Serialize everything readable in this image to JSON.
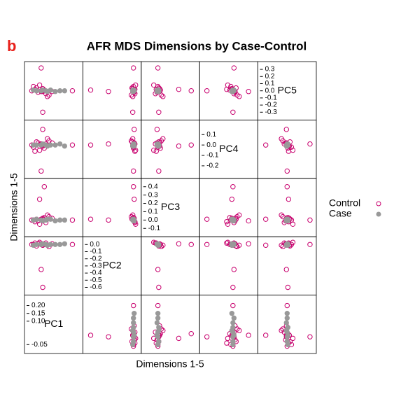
{
  "chart_data": {
    "type": "splom",
    "panel_label": "b",
    "title": "AFR MDS Dimensions by Case-Control",
    "xlabel": "Dimensions 1-5",
    "ylabel": "Dimensions 1-5",
    "variables": [
      {
        "name": "PC1",
        "lim": [
          -0.08,
          0.24
        ],
        "ticks": [
          -0.05,
          {
            "value": 0.1,
            "label": "0.10"
          },
          {
            "value": 0.15,
            "label": "0.15"
          },
          {
            "value": 0.2,
            "label": "0.20"
          }
        ]
      },
      {
        "name": "PC2",
        "lim": [
          -0.65,
          0.05
        ],
        "ticks": [
          {
            "value": 0,
            "label": "0.0"
          },
          -0.1,
          -0.2,
          -0.3,
          -0.4,
          -0.5,
          -0.6
        ]
      },
      {
        "name": "PC3",
        "lim": [
          -0.15,
          0.45
        ],
        "ticks": [
          -0.1,
          {
            "value": 0,
            "label": "0.0"
          },
          0.1,
          0.2,
          0.3,
          0.4
        ]
      },
      {
        "name": "PC4",
        "lim": [
          -0.28,
          0.2
        ],
        "ticks": [
          -0.2,
          -0.1,
          {
            "value": 0,
            "label": "0.0"
          },
          0.1
        ]
      },
      {
        "name": "PC5",
        "lim": [
          -0.35,
          0.35
        ],
        "ticks": [
          -0.3,
          -0.2,
          -0.1,
          {
            "value": 0,
            "label": "0.0"
          },
          0.1,
          0.2,
          0.3
        ]
      }
    ],
    "series": [
      {
        "name": "Control",
        "color": "#c8006e",
        "filled": false,
        "values": [
          [
            0,
            0,
            0,
            0,
            0
          ],
          [
            0.01,
            -0.01,
            0.02,
            -0.01,
            0.03
          ],
          [
            -0.02,
            0.01,
            -0.01,
            0.02,
            -0.02
          ],
          [
            0.02,
            0,
            0.03,
            -0.03,
            0.01
          ],
          [
            -0.03,
            -0.02,
            0.01,
            0.03,
            0.04
          ],
          [
            0.03,
            0.02,
            -0.03,
            0.01,
            -0.04
          ],
          [
            -0.05,
            0,
            0,
            -0.02,
            0.06
          ],
          [
            0.05,
            -0.03,
            0.04,
            0.04,
            -0.06
          ],
          [
            -0.01,
            0.03,
            -0.05,
            -0.05,
            0.08
          ],
          [
            0.04,
            -0.01,
            0.06,
            0.06,
            -0.08
          ],
          [
            -0.04,
            0.02,
            -0.02,
            -0.06,
            0.02
          ],
          [
            0.07,
            0.01,
            0.02,
            0.02,
            -0.01
          ],
          [
            0.01,
            -0.6,
            0.01,
            0,
            0.01
          ],
          [
            0,
            -0.35,
            0,
            0.01,
            -0.01
          ],
          [
            0.02,
            0,
            0.4,
            0,
            0
          ],
          [
            -0.01,
            0.01,
            0.25,
            -0.01,
            0.02
          ],
          [
            0,
            0,
            0.01,
            -0.25,
            0
          ],
          [
            0.01,
            0.01,
            -0.01,
            0.15,
            -0.01
          ],
          [
            0,
            0,
            0,
            0.01,
            0.32
          ],
          [
            0.01,
            -0.01,
            0.01,
            0,
            -0.3
          ],
          [
            0.2,
            0,
            0,
            0,
            0
          ],
          [
            -0.06,
            0,
            0,
            0,
            0
          ]
        ]
      },
      {
        "name": "Case",
        "color": "#999999",
        "filled": true,
        "values": [
          [
            0,
            0,
            0,
            0,
            0
          ],
          [
            0.03,
            0,
            0,
            0,
            0
          ],
          [
            0.06,
            0,
            0.01,
            0,
            0.01
          ],
          [
            0.09,
            0,
            -0.01,
            0,
            -0.01
          ],
          [
            0.12,
            0,
            0,
            0.01,
            0
          ],
          [
            0.15,
            0.01,
            0,
            -0.01,
            0
          ],
          [
            -0.03,
            0,
            0.01,
            0,
            0
          ],
          [
            -0.05,
            -0.01,
            0,
            0,
            0.01
          ],
          [
            0.01,
            0.01,
            -0.01,
            0.01,
            0.01
          ],
          [
            0.04,
            -0.01,
            0.01,
            -0.01,
            -0.01
          ]
        ]
      }
    ]
  }
}
